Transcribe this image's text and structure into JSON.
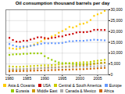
{
  "chart_data": {
    "type": "scatter",
    "title": "Oil consumption thousand barrels per day",
    "x": [
      1980,
      1981,
      1982,
      1983,
      1984,
      1985,
      1986,
      1987,
      1988,
      1989,
      1990,
      1991,
      1992,
      1993,
      1994,
      1995,
      1996,
      1997,
      1998,
      1999,
      2000,
      2001,
      2002,
      2003,
      2004,
      2005,
      2006,
      2007
    ],
    "series": [
      {
        "name": "Asia & Oceania",
        "color": "#ffcc00",
        "marker": "square",
        "values": [
          12300,
          12100,
          11900,
          12100,
          12600,
          12900,
          13400,
          14000,
          14700,
          15500,
          16400,
          16800,
          17700,
          18300,
          19400,
          20200,
          21000,
          22100,
          21800,
          22400,
          23400,
          23600,
          24200,
          25300,
          27200,
          27900,
          28500,
          29500
        ]
      },
      {
        "name": "USA",
        "color": "#cc0000",
        "marker": "square",
        "values": [
          17056,
          16058,
          15296,
          15231,
          15726,
          15726,
          16281,
          16665,
          17283,
          17325,
          16988,
          16714,
          17033,
          17237,
          17718,
          17725,
          18309,
          18620,
          18917,
          19519,
          19701,
          19649,
          19761,
          20033,
          20731,
          20802,
          20687,
          20680
        ]
      },
      {
        "name": "Central & South America",
        "color": "#cccc00",
        "marker": "square",
        "values": [
          3900,
          3800,
          3700,
          3700,
          3800,
          3900,
          4000,
          4100,
          4200,
          4300,
          4400,
          4400,
          4500,
          4600,
          4800,
          5000,
          5200,
          5400,
          5500,
          5600,
          5700,
          5800,
          5800,
          6000,
          6300,
          6500,
          6700,
          6900
        ]
      },
      {
        "name": "Europe",
        "color": "#6699ff",
        "marker": "square",
        "values": [
          14200,
          13600,
          13100,
          12900,
          13100,
          13000,
          13400,
          13600,
          14000,
          14300,
          14600,
          14500,
          14600,
          14500,
          14600,
          14700,
          15100,
          15500,
          15500,
          15700,
          15700,
          15700,
          15900,
          16000,
          16200,
          16100,
          16000,
          15900
        ]
      },
      {
        "name": "Eurasia",
        "color": "#99cc00",
        "marker": "square",
        "values": [
          9200,
          9400,
          9500,
          9500,
          9700,
          9700,
          9900,
          9900,
          9900,
          9900,
          8600,
          7700,
          6900,
          6200,
          5700,
          5400,
          5400,
          5200,
          5000,
          4900,
          4900,
          4900,
          5000,
          5100,
          5300,
          5400,
          5500,
          5600
        ]
      },
      {
        "name": "Middle East",
        "color": "#cc9900",
        "marker": "square",
        "values": [
          2200,
          2300,
          2400,
          2500,
          2600,
          2700,
          2800,
          2900,
          3000,
          3100,
          3300,
          3400,
          3500,
          3500,
          3600,
          3700,
          3800,
          3900,
          4000,
          4100,
          4300,
          4400,
          4500,
          4700,
          5000,
          5200,
          5400,
          5600
        ]
      },
      {
        "name": "Canada & Mexico",
        "color": "#aaaaaa",
        "marker": "square",
        "values": [
          2800,
          2700,
          2600,
          2600,
          2700,
          2700,
          2800,
          2900,
          3000,
          3100,
          3100,
          3100,
          3200,
          3200,
          3300,
          3400,
          3500,
          3600,
          3600,
          3700,
          3800,
          3700,
          3700,
          3800,
          3900,
          4000,
          4000,
          4100
        ]
      },
      {
        "name": "Africa",
        "color": "#cc6600",
        "marker": "square",
        "values": [
          1600,
          1700,
          1700,
          1700,
          1800,
          1800,
          1900,
          1900,
          2000,
          2000,
          2100,
          2100,
          2200,
          2200,
          2300,
          2300,
          2400,
          2400,
          2500,
          2500,
          2600,
          2600,
          2700,
          2800,
          2900,
          3000,
          3100,
          3200
        ]
      }
    ],
    "xlim": [
      1979,
      2008
    ],
    "ylim": [
      0,
      30000
    ],
    "xticks": [
      1980,
      1985,
      1990,
      1995,
      2000,
      2005
    ],
    "yticks": [
      0,
      {
        "value": 5000,
        "label": "5,000"
      },
      {
        "value": 10000,
        "label": "10,000"
      },
      {
        "value": 15000,
        "label": "15,000"
      },
      {
        "value": 20000,
        "label": "20,000"
      },
      {
        "value": 25000,
        "label": "25,000"
      },
      {
        "value": 30000,
        "label": "30,000"
      }
    ],
    "grid": true
  }
}
